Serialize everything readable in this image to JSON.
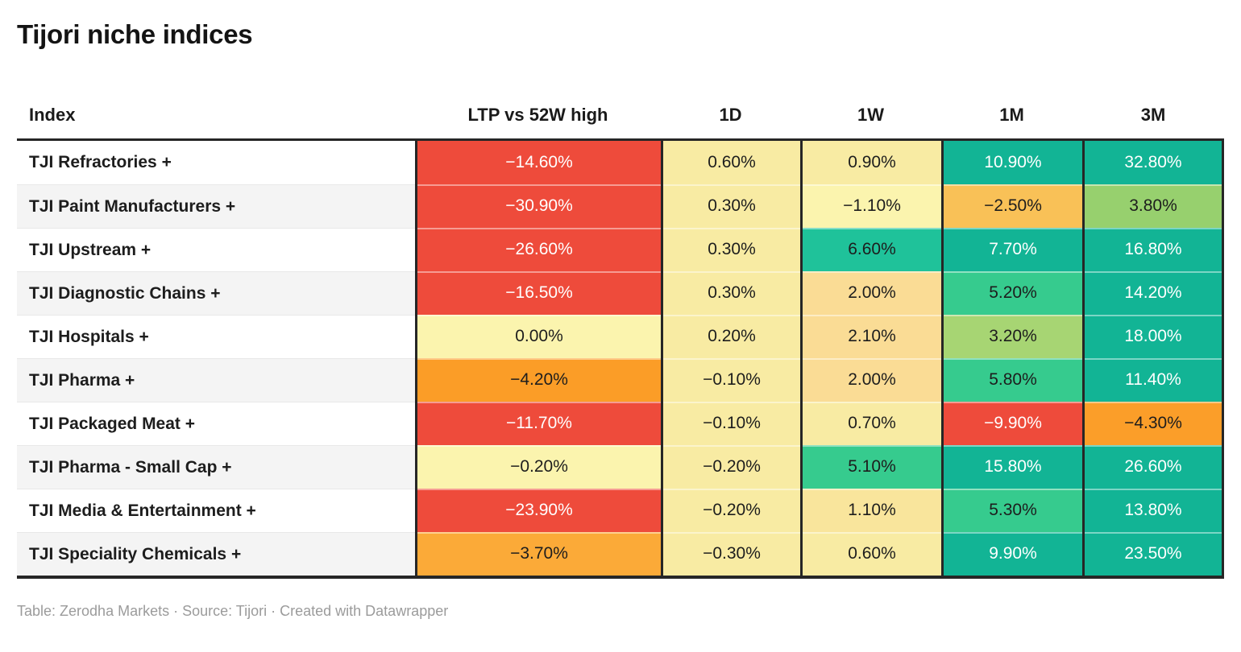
{
  "title": "Tijori niche indices",
  "footer": {
    "text": "Table: Zerodha Markets · Source: Tijori · Created with Datawrapper"
  },
  "table": {
    "columns": [
      "Index",
      "LTP vs 52W high",
      "1D",
      "1W",
      "1M",
      "3M"
    ],
    "rows": [
      {
        "name": "TJI Refractories +",
        "cells": [
          {
            "v": "−14.60%",
            "bg": "#ee4b3b",
            "fg": "#ffffff"
          },
          {
            "v": "0.60%",
            "bg": "#f8eba3",
            "fg": "#1d1d1d"
          },
          {
            "v": "0.90%",
            "bg": "#f8eba3",
            "fg": "#1d1d1d"
          },
          {
            "v": "10.90%",
            "bg": "#12b495",
            "fg": "#ffffff"
          },
          {
            "v": "32.80%",
            "bg": "#12b495",
            "fg": "#ffffff"
          }
        ]
      },
      {
        "name": "TJI Paint Manufacturers +",
        "cells": [
          {
            "v": "−30.90%",
            "bg": "#ee4b3b",
            "fg": "#ffffff"
          },
          {
            "v": "0.30%",
            "bg": "#f8eba3",
            "fg": "#1d1d1d"
          },
          {
            "v": "−1.10%",
            "bg": "#fbf4ae",
            "fg": "#1d1d1d"
          },
          {
            "v": "−2.50%",
            "bg": "#f9c157",
            "fg": "#1d1d1d"
          },
          {
            "v": "3.80%",
            "bg": "#97d06e",
            "fg": "#1d1d1d"
          }
        ]
      },
      {
        "name": "TJI Upstream +",
        "cells": [
          {
            "v": "−26.60%",
            "bg": "#ee4b3b",
            "fg": "#ffffff"
          },
          {
            "v": "0.30%",
            "bg": "#f8eba3",
            "fg": "#1d1d1d"
          },
          {
            "v": "6.60%",
            "bg": "#1fc29a",
            "fg": "#1d1d1d"
          },
          {
            "v": "7.70%",
            "bg": "#12b495",
            "fg": "#ffffff"
          },
          {
            "v": "16.80%",
            "bg": "#12b495",
            "fg": "#ffffff"
          }
        ]
      },
      {
        "name": "TJI Diagnostic Chains +",
        "cells": [
          {
            "v": "−16.50%",
            "bg": "#ee4b3b",
            "fg": "#ffffff"
          },
          {
            "v": "0.30%",
            "bg": "#f8eba3",
            "fg": "#1d1d1d"
          },
          {
            "v": "2.00%",
            "bg": "#fadc95",
            "fg": "#1d1d1d"
          },
          {
            "v": "5.20%",
            "bg": "#36cb8e",
            "fg": "#1d1d1d"
          },
          {
            "v": "14.20%",
            "bg": "#12b495",
            "fg": "#ffffff"
          }
        ]
      },
      {
        "name": "TJI Hospitals +",
        "cells": [
          {
            "v": "0.00%",
            "bg": "#fbf4ae",
            "fg": "#1d1d1d"
          },
          {
            "v": "0.20%",
            "bg": "#f8eba3",
            "fg": "#1d1d1d"
          },
          {
            "v": "2.10%",
            "bg": "#fadc95",
            "fg": "#1d1d1d"
          },
          {
            "v": "3.20%",
            "bg": "#a7d573",
            "fg": "#1d1d1d"
          },
          {
            "v": "18.00%",
            "bg": "#12b495",
            "fg": "#ffffff"
          }
        ]
      },
      {
        "name": "TJI Pharma +",
        "cells": [
          {
            "v": "−4.20%",
            "bg": "#fb9d27",
            "fg": "#1d1d1d"
          },
          {
            "v": "−0.10%",
            "bg": "#f8eba3",
            "fg": "#1d1d1d"
          },
          {
            "v": "2.00%",
            "bg": "#fadc95",
            "fg": "#1d1d1d"
          },
          {
            "v": "5.80%",
            "bg": "#36cb8e",
            "fg": "#1d1d1d"
          },
          {
            "v": "11.40%",
            "bg": "#12b495",
            "fg": "#ffffff"
          }
        ]
      },
      {
        "name": "TJI Packaged Meat +",
        "cells": [
          {
            "v": "−11.70%",
            "bg": "#ee4b3b",
            "fg": "#ffffff"
          },
          {
            "v": "−0.10%",
            "bg": "#f8eba3",
            "fg": "#1d1d1d"
          },
          {
            "v": "0.70%",
            "bg": "#f8eba3",
            "fg": "#1d1d1d"
          },
          {
            "v": "−9.90%",
            "bg": "#ee4b3b",
            "fg": "#ffffff"
          },
          {
            "v": "−4.30%",
            "bg": "#fb9e29",
            "fg": "#1d1d1d"
          }
        ]
      },
      {
        "name": "TJI Pharma - Small Cap +",
        "cells": [
          {
            "v": "−0.20%",
            "bg": "#fbf4ae",
            "fg": "#1d1d1d"
          },
          {
            "v": "−0.20%",
            "bg": "#f8eba3",
            "fg": "#1d1d1d"
          },
          {
            "v": "5.10%",
            "bg": "#36cb8e",
            "fg": "#1d1d1d"
          },
          {
            "v": "15.80%",
            "bg": "#12b495",
            "fg": "#ffffff"
          },
          {
            "v": "26.60%",
            "bg": "#12b495",
            "fg": "#ffffff"
          }
        ]
      },
      {
        "name": "TJI Media & Entertainment +",
        "cells": [
          {
            "v": "−23.90%",
            "bg": "#ee4b3b",
            "fg": "#ffffff"
          },
          {
            "v": "−0.20%",
            "bg": "#f8eba3",
            "fg": "#1d1d1d"
          },
          {
            "v": "1.10%",
            "bg": "#f9e59c",
            "fg": "#1d1d1d"
          },
          {
            "v": "5.30%",
            "bg": "#36cb8e",
            "fg": "#1d1d1d"
          },
          {
            "v": "13.80%",
            "bg": "#12b495",
            "fg": "#ffffff"
          }
        ]
      },
      {
        "name": "TJI Speciality Chemicals +",
        "cells": [
          {
            "v": "−3.70%",
            "bg": "#fbaa38",
            "fg": "#1d1d1d"
          },
          {
            "v": "−0.30%",
            "bg": "#f8eba3",
            "fg": "#1d1d1d"
          },
          {
            "v": "0.60%",
            "bg": "#f8eba3",
            "fg": "#1d1d1d"
          },
          {
            "v": "9.90%",
            "bg": "#12b495",
            "fg": "#ffffff"
          },
          {
            "v": "23.50%",
            "bg": "#12b495",
            "fg": "#ffffff"
          }
        ]
      }
    ]
  },
  "chart_data": {
    "type": "table",
    "title": "Tijori niche indices",
    "columns": [
      "Index",
      "LTP vs 52W high",
      "1D",
      "1W",
      "1M",
      "3M"
    ],
    "units": "percent",
    "rows": [
      [
        "TJI Refractories +",
        -14.6,
        0.6,
        0.9,
        10.9,
        32.8
      ],
      [
        "TJI Paint Manufacturers +",
        -30.9,
        0.3,
        -1.1,
        -2.5,
        3.8
      ],
      [
        "TJI Upstream +",
        -26.6,
        0.3,
        6.6,
        7.7,
        16.8
      ],
      [
        "TJI Diagnostic Chains +",
        -16.5,
        0.3,
        2.0,
        5.2,
        14.2
      ],
      [
        "TJI Hospitals +",
        0.0,
        0.2,
        2.1,
        3.2,
        18.0
      ],
      [
        "TJI Pharma +",
        -4.2,
        -0.1,
        2.0,
        5.8,
        11.4
      ],
      [
        "TJI Packaged Meat +",
        -11.7,
        -0.1,
        0.7,
        -9.9,
        -4.3
      ],
      [
        "TJI Pharma - Small Cap +",
        -0.2,
        -0.2,
        5.1,
        15.8,
        26.6
      ],
      [
        "TJI Media & Entertainment +",
        -23.9,
        -0.2,
        1.1,
        5.3,
        13.8
      ],
      [
        "TJI Speciality Chemicals +",
        -3.7,
        -0.3,
        0.6,
        9.9,
        23.5
      ]
    ],
    "layout_hints": {
      "heatmap_scale": "red (negative) → yellow (near zero) → green/teal (positive)",
      "scale_colors": {
        "red": "#ee4b3b",
        "orange": "#fb9d27",
        "yellow": "#f8eba3",
        "pale_yellow": "#fbf4ae",
        "tan": "#fadc95",
        "yellow_green": "#a7d573",
        "emerald": "#36cb8e",
        "teal": "#12b495"
      }
    }
  }
}
